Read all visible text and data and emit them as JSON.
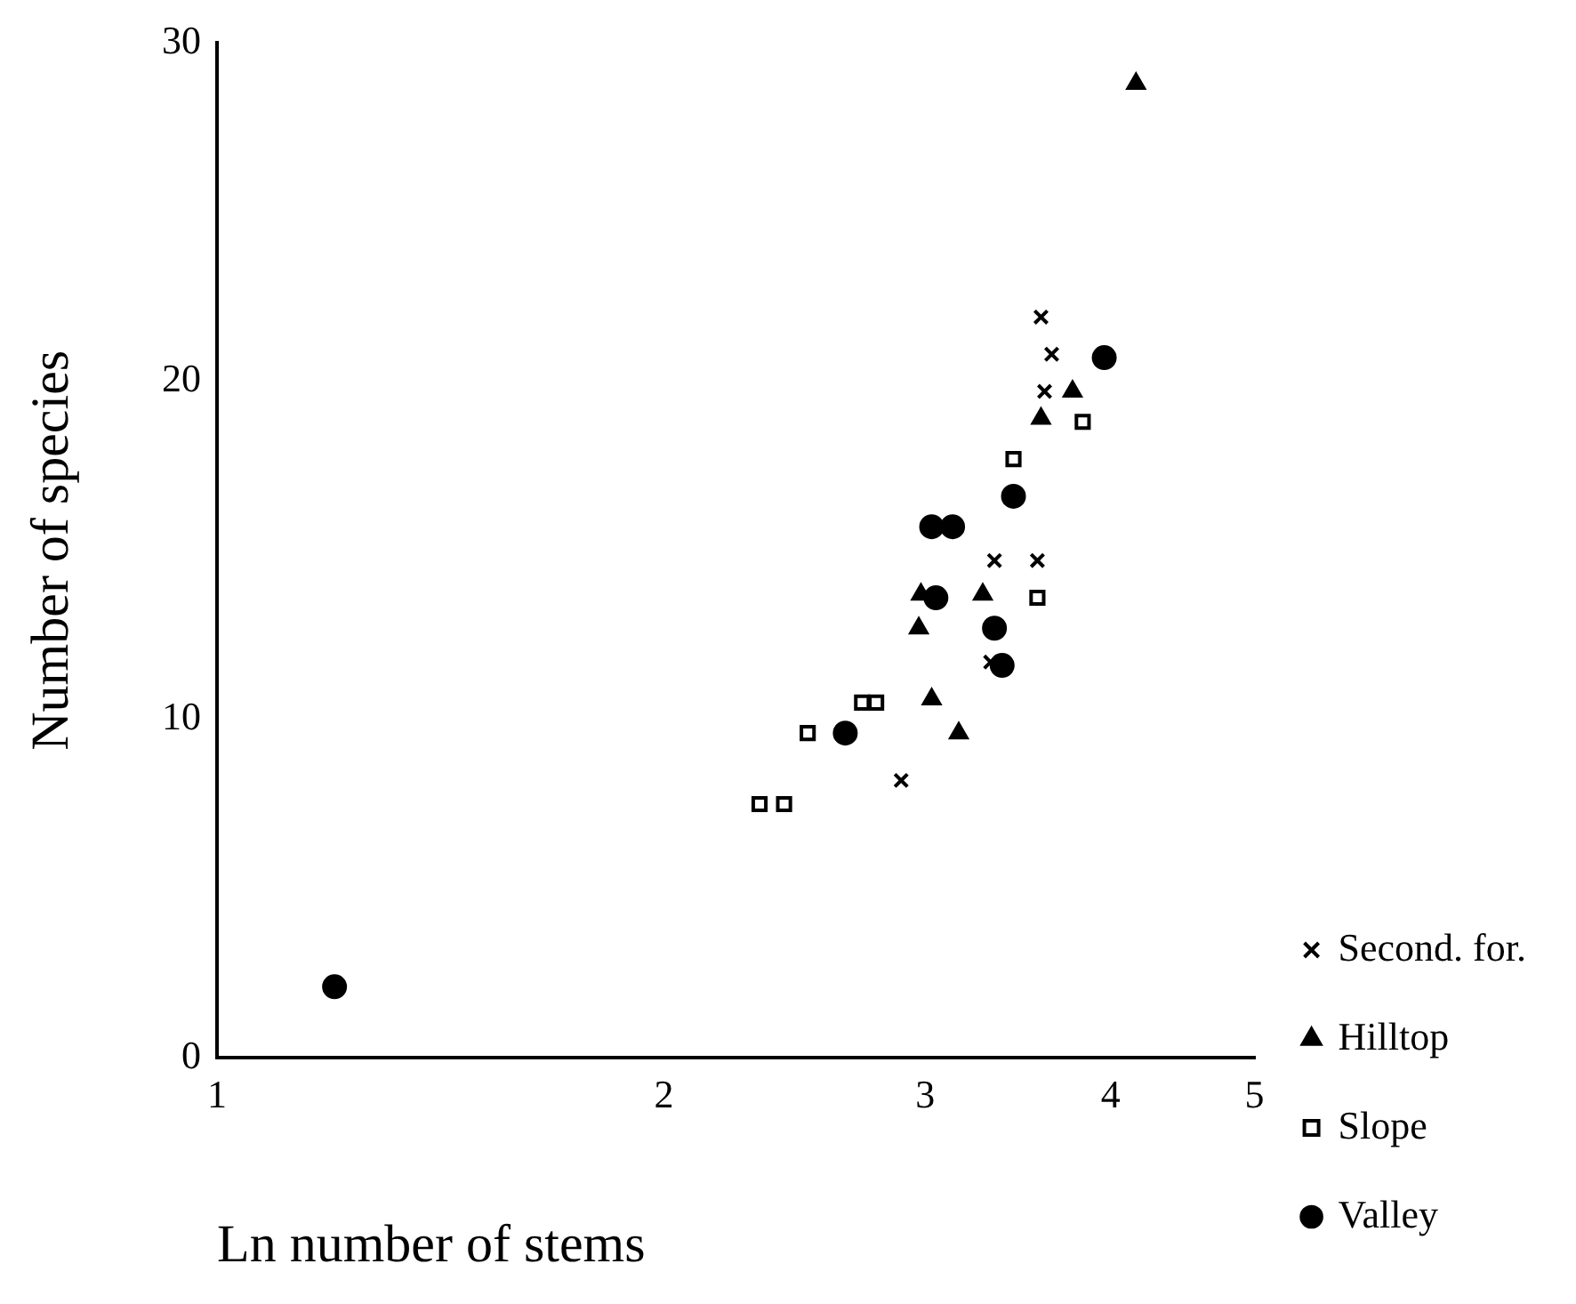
{
  "chart_data": {
    "type": "scatter",
    "xlabel": "Ln number of stems",
    "ylabel": "Number of species",
    "log": "x",
    "xlim": [
      1,
      5
    ],
    "xticks": [
      1,
      2,
      3,
      4,
      5
    ],
    "ylim": [
      0,
      30
    ],
    "yticks": [
      0,
      10,
      20,
      30
    ],
    "grid": false,
    "legend": "right",
    "series": [
      {
        "name": "Second. for.",
        "color": "#000000",
        "marker": "cross",
        "x": [
          3.59,
          3.65,
          3.61,
          3.34,
          3.57,
          3.32,
          2.89
        ],
        "values": [
          21.9,
          20.8,
          19.7,
          14.7,
          14.7,
          11.7,
          8.2
        ]
      },
      {
        "name": "Hilltop",
        "color": "#000000",
        "marker": "triangle",
        "x": [
          4.16,
          3.77,
          3.59,
          2.98,
          2.97,
          3.28,
          3.03,
          3.16
        ],
        "values": [
          28.8,
          19.7,
          18.9,
          13.7,
          12.7,
          13.7,
          10.6,
          9.6
        ]
      },
      {
        "name": "Slope",
        "color": "#000000",
        "marker": "square",
        "x": [
          3.83,
          3.44,
          3.57,
          2.72,
          2.78,
          2.5,
          2.32,
          2.41
        ],
        "values": [
          18.8,
          17.7,
          13.6,
          10.5,
          10.5,
          9.6,
          7.5,
          7.5
        ]
      },
      {
        "name": "Valley",
        "color": "#000000",
        "marker": "circle",
        "x": [
          3.96,
          3.44,
          3.03,
          3.13,
          3.05,
          3.34,
          3.38,
          2.65,
          1.2
        ],
        "values": [
          20.7,
          16.6,
          15.7,
          15.7,
          13.6,
          12.7,
          11.6,
          9.6,
          2.1
        ]
      }
    ]
  }
}
